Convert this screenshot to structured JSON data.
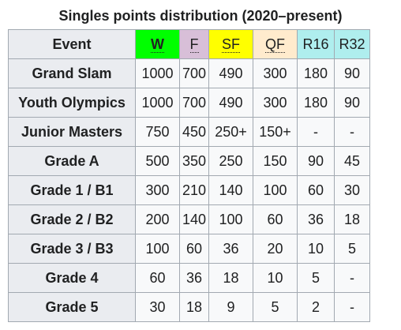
{
  "caption": "Singles points distribution (2020–present)",
  "header": {
    "event": "Event",
    "columns": [
      {
        "key": "W",
        "label": "W",
        "color": "#00ff00"
      },
      {
        "key": "F",
        "label": "F",
        "color": "#d8bfd8"
      },
      {
        "key": "SF",
        "label": "SF",
        "color": "#ffff00"
      },
      {
        "key": "QF",
        "label": "QF",
        "color": "#ffebcd"
      },
      {
        "key": "R16",
        "label": "R16",
        "color": "#afeeee"
      },
      {
        "key": "R32",
        "label": "R32",
        "color": "#afeeee"
      }
    ]
  },
  "rows": [
    {
      "event": "Grand Slam",
      "values": [
        "1000",
        "700",
        "490",
        "300",
        "180",
        "90"
      ]
    },
    {
      "event": "Youth Olympics",
      "values": [
        "1000",
        "700",
        "490",
        "300",
        "180",
        "90"
      ]
    },
    {
      "event": "Junior Masters",
      "values": [
        "750",
        "450",
        "250+",
        "150+",
        "-",
        "-"
      ]
    },
    {
      "event": "Grade A",
      "values": [
        "500",
        "350",
        "250",
        "150",
        "90",
        "45"
      ]
    },
    {
      "event": "Grade 1 / B1",
      "values": [
        "300",
        "210",
        "140",
        "100",
        "60",
        "30"
      ]
    },
    {
      "event": "Grade 2 / B2",
      "values": [
        "200",
        "140",
        "100",
        "60",
        "36",
        "18"
      ]
    },
    {
      "event": "Grade 3 / B3",
      "values": [
        "100",
        "60",
        "36",
        "20",
        "10",
        "5"
      ]
    },
    {
      "event": "Grade 4",
      "values": [
        "60",
        "36",
        "18",
        "10",
        "5",
        "-"
      ]
    },
    {
      "event": "Grade 5",
      "values": [
        "30",
        "18",
        "9",
        "5",
        "2",
        "-"
      ]
    }
  ]
}
